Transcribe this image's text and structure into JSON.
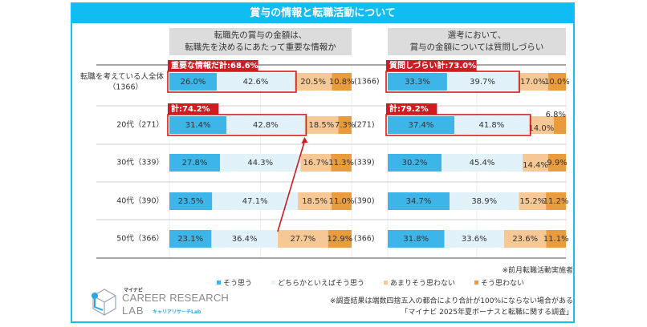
{
  "title": "賞与の情報と転職活動について",
  "questions": [
    {
      "line1": "転職先の賞与の金額は、",
      "line2": "転職先を決めるにあたって重要な情報か"
    },
    {
      "line1": "選考において、",
      "line2": "賞与の金額については質問しづらい"
    }
  ],
  "chart_data": {
    "type": "bar",
    "orientation": "horizontal-stacked-100",
    "title": "賞与の情報と転職活動について",
    "categories": [
      "転職を考えている人全体（1366）",
      "20代（271）",
      "30代（339）",
      "40代（390）",
      "50代（366）"
    ],
    "category_lines": [
      [
        "転職を考えている人全体",
        "（1366）"
      ],
      [
        "20代（271）"
      ],
      [
        "30代（339）"
      ],
      [
        "40代（390）"
      ],
      [
        "50代（366）"
      ]
    ],
    "middle_labels": [
      "(1366)",
      "(271)",
      "(339)",
      "(390)",
      "(366)"
    ],
    "legend": [
      "そう思う",
      "どちらかといえばそう思う",
      "あまりそう思わない",
      "そう思わない"
    ],
    "colors": [
      "#3db5e8",
      "#e6f4fb",
      "#f5c896",
      "#ea9c3c"
    ],
    "charts": [
      {
        "question": "転職先の賞与の金額は、転職先を決めるにあたって重要な情報か",
        "series": [
          {
            "name": "そう思う",
            "values": [
              26.0,
              31.4,
              27.8,
              23.5,
              23.1
            ]
          },
          {
            "name": "どちらかといえばそう思う",
            "values": [
              42.6,
              42.8,
              44.3,
              47.1,
              36.4
            ]
          },
          {
            "name": "あまりそう思わない",
            "values": [
              20.5,
              18.5,
              16.7,
              18.5,
              27.7
            ]
          },
          {
            "name": "そう思わない",
            "values": [
              10.8,
              7.3,
              11.3,
              11.0,
              12.9
            ]
          }
        ],
        "callouts": [
          {
            "row": 0,
            "label": "重要な情報だ計:68.6%"
          },
          {
            "row": 1,
            "label": "計:74.2%"
          }
        ],
        "arrow": {
          "from_row": 4,
          "to_row": 1
        }
      },
      {
        "question": "選考において、賞与の金額については質問しづらい",
        "series": [
          {
            "name": "そう思う",
            "values": [
              33.3,
              37.4,
              30.2,
              34.7,
              31.8
            ]
          },
          {
            "name": "どちらかといえばそう思う",
            "values": [
              39.7,
              41.8,
              45.4,
              38.9,
              33.6
            ]
          },
          {
            "name": "あまりそう思わない",
            "values": [
              17.0,
              14.0,
              14.4,
              15.2,
              23.6
            ]
          },
          {
            "name": "そう思わない",
            "values": [
              10.0,
              6.8,
              9.9,
              11.2,
              11.1
            ]
          }
        ],
        "callouts": [
          {
            "row": 0,
            "label": "質問しづらい計:73.0%"
          },
          {
            "row": 1,
            "label": "計:79.2%"
          }
        ]
      }
    ],
    "xlim": [
      0,
      100
    ]
  },
  "notes": {
    "respondents": "※前月転職活動実施者",
    "rounding": "※調査結果は端数四捨五入の都合により合計が100%にならない場合がある",
    "source": "「マイナビ 2025年夏ボーナスと転職に関する調査」"
  },
  "logo": {
    "brand": "マイナビ",
    "main": "CAREER RESEARCH",
    "lab": "LAB",
    "sub": "キャリアリサーチLab"
  }
}
